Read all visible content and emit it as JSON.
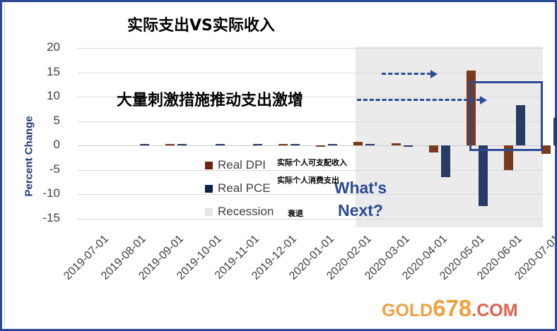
{
  "title": "实际支出VS实际收入",
  "annotation": "大量刺激措施推动支出激增",
  "whats_next": [
    "What's",
    "Next?"
  ],
  "watermark": {
    "gold": "GOLD",
    "num": "678",
    "com": ".COM"
  },
  "legend": [
    {
      "label": "Real DPI",
      "cn": "实际个人可支配收入",
      "color": "#6b2410"
    },
    {
      "label": "Real PCE",
      "cn": "实际个人消费支出",
      "color": "#0f1f4a"
    },
    {
      "label": "Recession",
      "cn": "衰退",
      "color": "#e6e6e6"
    }
  ],
  "colors": {
    "dpi": "#7b3a1e",
    "pce": "#263b66",
    "recession": "#ebebeb",
    "accent": "#2c4a94"
  },
  "chart_data": {
    "type": "bar",
    "title": "实际支出VS实际收入",
    "xlabel": "",
    "ylabel": "Percent Change",
    "ylim": [
      -15,
      20
    ],
    "yticks": [
      20,
      15,
      10,
      5,
      0,
      -5,
      -10,
      -15
    ],
    "grid": true,
    "legend_position": "inside-bottom-center",
    "categories": [
      "2019-07-01",
      "2019-08-01",
      "2019-09-01",
      "2019-10-01",
      "2019-11-01",
      "2019-12-01",
      "2020-01-01",
      "2020-02-01",
      "2020-03-01",
      "2020-04-01",
      "2020-05-01",
      "2020-06-01",
      "2020-07-01"
    ],
    "series": [
      {
        "name": "Real DPI",
        "values": [
          0.0,
          0.0,
          0.3,
          0.0,
          0.0,
          0.3,
          -0.2,
          0.7,
          0.5,
          -1.5,
          15.3,
          -5.0,
          -1.8
        ]
      },
      {
        "name": "Real PCE",
        "values": [
          0.0,
          0.2,
          0.2,
          0.2,
          0.2,
          0.2,
          0.2,
          0.3,
          -0.2,
          -6.5,
          -12.5,
          8.3,
          5.6
        ]
      }
    ],
    "recession_shading": {
      "from": "2020-03-01",
      "to": "2020-07-01"
    },
    "annotations": [
      "大量刺激措施推动支出激增",
      "What's Next?"
    ]
  }
}
